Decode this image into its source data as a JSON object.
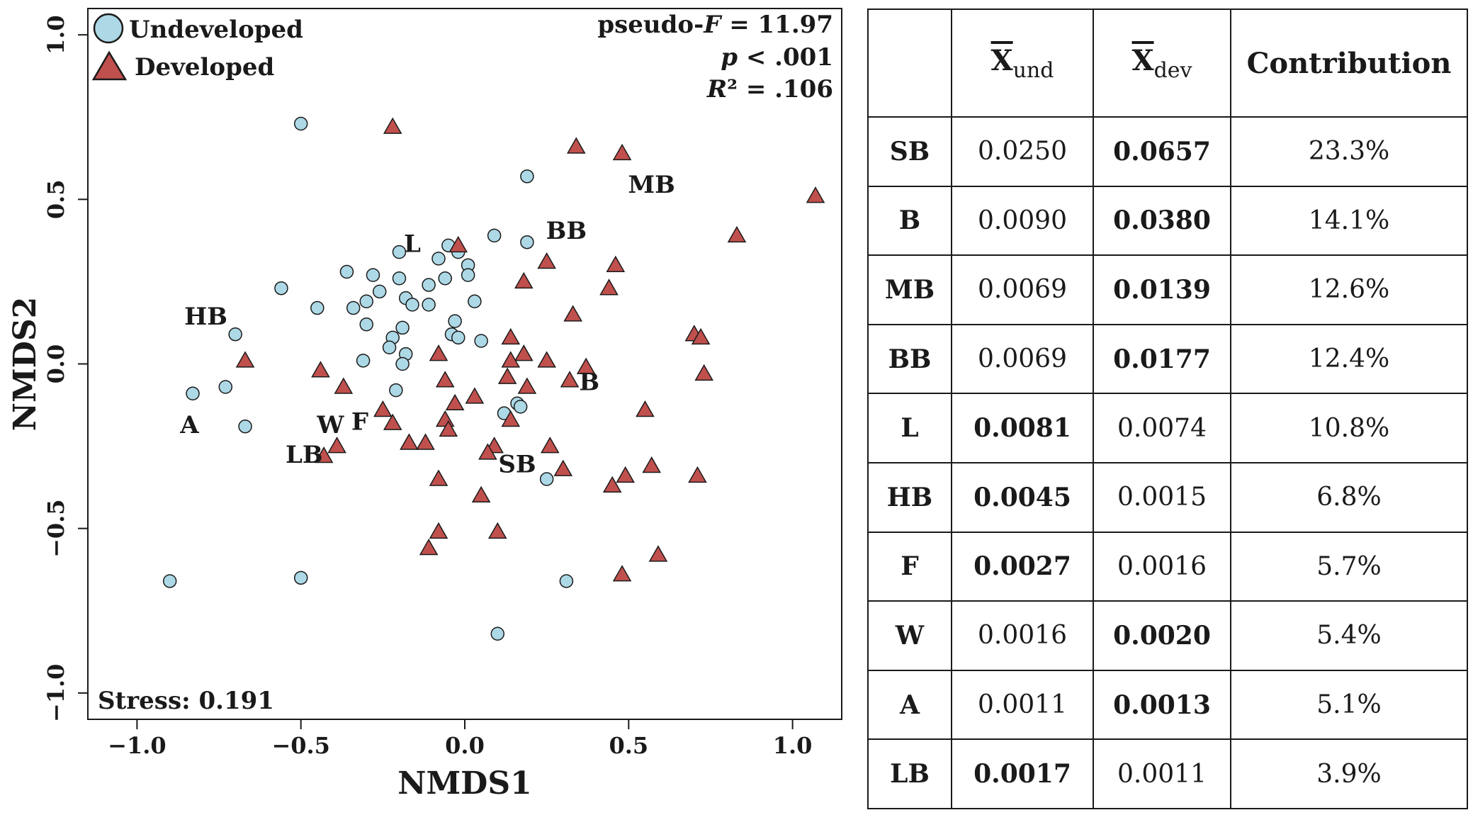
{
  "chart_data": {
    "type": "scatter",
    "xlabel": "NMDS1",
    "ylabel": "NMDS2",
    "xlim": [
      -1.15,
      1.15
    ],
    "ylim": [
      -1.08,
      1.08
    ],
    "xticks": [
      -1.0,
      -0.5,
      0.0,
      0.5,
      1.0
    ],
    "xtick_labels": [
      "−1.0",
      "−0.5",
      "0.0",
      "0.5",
      "1.0"
    ],
    "yticks": [
      -1.0,
      -0.5,
      0.0,
      0.5,
      1.0
    ],
    "ytick_labels": [
      "−1.0",
      "−0.5",
      "0.0",
      "0.5",
      "1.0"
    ],
    "grid": false,
    "legend_position": "top-left",
    "stats": {
      "pseudo_f_prefix": "pseudo-",
      "pseudo_f_italic": "F",
      "pseudo_f_value": " = 11.97",
      "p_italic": "p",
      "p_value": " < .001",
      "r2_italic": "R",
      "r2_value": "² = .106"
    },
    "stress_text": "Stress: 0.191",
    "series": [
      {
        "name": "Undeveloped",
        "marker": "circle",
        "color": "#ADD8E6",
        "points": [
          [
            -0.5,
            0.73
          ],
          [
            0.19,
            0.57
          ],
          [
            0.09,
            0.39
          ],
          [
            0.19,
            0.37
          ],
          [
            -0.05,
            0.36
          ],
          [
            -0.08,
            0.32
          ],
          [
            -0.02,
            0.34
          ],
          [
            0.01,
            0.3
          ],
          [
            0.01,
            0.27
          ],
          [
            -0.2,
            0.34
          ],
          [
            -0.36,
            0.28
          ],
          [
            -0.28,
            0.27
          ],
          [
            -0.2,
            0.26
          ],
          [
            -0.06,
            0.26
          ],
          [
            -0.56,
            0.23
          ],
          [
            -0.26,
            0.22
          ],
          [
            -0.11,
            0.24
          ],
          [
            -0.3,
            0.19
          ],
          [
            -0.18,
            0.2
          ],
          [
            -0.16,
            0.18
          ],
          [
            -0.11,
            0.18
          ],
          [
            0.03,
            0.19
          ],
          [
            -0.45,
            0.17
          ],
          [
            -0.34,
            0.17
          ],
          [
            -0.3,
            0.12
          ],
          [
            -0.19,
            0.11
          ],
          [
            -0.03,
            0.13
          ],
          [
            -0.04,
            0.09
          ],
          [
            -0.02,
            0.08
          ],
          [
            -0.7,
            0.09
          ],
          [
            -0.22,
            0.08
          ],
          [
            0.05,
            0.07
          ],
          [
            -0.23,
            0.05
          ],
          [
            -0.18,
            0.03
          ],
          [
            -0.31,
            0.01
          ],
          [
            -0.19,
            0.0
          ],
          [
            -0.83,
            -0.09
          ],
          [
            -0.73,
            -0.07
          ],
          [
            -0.21,
            -0.08
          ],
          [
            0.16,
            -0.12
          ],
          [
            0.17,
            -0.13
          ],
          [
            0.12,
            -0.15
          ],
          [
            -0.67,
            -0.19
          ],
          [
            0.25,
            -0.35
          ],
          [
            -0.5,
            -0.65
          ],
          [
            -0.9,
            -0.66
          ],
          [
            0.31,
            -0.66
          ],
          [
            0.1,
            -0.82
          ]
        ]
      },
      {
        "name": "Developed",
        "marker": "triangle",
        "color": "#C0504D",
        "points": [
          [
            -0.22,
            0.72
          ],
          [
            0.34,
            0.66
          ],
          [
            0.48,
            0.64
          ],
          [
            1.07,
            0.51
          ],
          [
            0.83,
            0.39
          ],
          [
            -0.02,
            0.36
          ],
          [
            0.25,
            0.31
          ],
          [
            0.46,
            0.3
          ],
          [
            0.18,
            0.25
          ],
          [
            0.44,
            0.23
          ],
          [
            0.33,
            0.15
          ],
          [
            0.7,
            0.09
          ],
          [
            0.72,
            0.08
          ],
          [
            0.14,
            0.08
          ],
          [
            0.18,
            0.03
          ],
          [
            -0.08,
            0.03
          ],
          [
            0.14,
            0.01
          ],
          [
            0.25,
            0.01
          ],
          [
            -0.67,
            0.01
          ],
          [
            0.37,
            -0.01
          ],
          [
            -0.44,
            -0.02
          ],
          [
            0.13,
            -0.04
          ],
          [
            0.73,
            -0.03
          ],
          [
            -0.37,
            -0.07
          ],
          [
            -0.06,
            -0.05
          ],
          [
            0.32,
            -0.05
          ],
          [
            0.19,
            -0.07
          ],
          [
            0.03,
            -0.1
          ],
          [
            -0.03,
            -0.12
          ],
          [
            -0.25,
            -0.14
          ],
          [
            0.55,
            -0.14
          ],
          [
            -0.06,
            -0.17
          ],
          [
            0.14,
            -0.17
          ],
          [
            -0.22,
            -0.18
          ],
          [
            -0.05,
            -0.2
          ],
          [
            -0.17,
            -0.24
          ],
          [
            -0.12,
            -0.24
          ],
          [
            0.09,
            -0.25
          ],
          [
            0.07,
            -0.27
          ],
          [
            0.26,
            -0.25
          ],
          [
            -0.39,
            -0.25
          ],
          [
            -0.43,
            -0.28
          ],
          [
            0.3,
            -0.32
          ],
          [
            0.57,
            -0.31
          ],
          [
            0.49,
            -0.34
          ],
          [
            0.71,
            -0.34
          ],
          [
            -0.08,
            -0.35
          ],
          [
            0.45,
            -0.37
          ],
          [
            0.05,
            -0.4
          ],
          [
            -0.08,
            -0.51
          ],
          [
            0.1,
            -0.51
          ],
          [
            -0.11,
            -0.56
          ],
          [
            0.59,
            -0.58
          ],
          [
            0.48,
            -0.64
          ]
        ]
      }
    ],
    "vector_labels": [
      {
        "text": "MB",
        "x": 0.57,
        "y": 0.52
      },
      {
        "text": "BB",
        "x": 0.31,
        "y": 0.38
      },
      {
        "text": "L",
        "x": -0.16,
        "y": 0.34
      },
      {
        "text": "HB",
        "x": -0.79,
        "y": 0.12
      },
      {
        "text": "B",
        "x": 0.38,
        "y": -0.08
      },
      {
        "text": "A",
        "x": -0.84,
        "y": -0.21
      },
      {
        "text": "W",
        "x": -0.41,
        "y": -0.21
      },
      {
        "text": "F",
        "x": -0.32,
        "y": -0.2
      },
      {
        "text": "LB",
        "x": -0.49,
        "y": -0.3
      },
      {
        "text": "SB",
        "x": 0.16,
        "y": -0.33
      }
    ]
  },
  "table": {
    "headers": {
      "blank": "",
      "und_base": "X",
      "und_sub": "und",
      "dev_base": "X",
      "dev_sub": "dev",
      "contribution": "Contribution"
    },
    "rows": [
      {
        "name": "SB",
        "und": "0.0250",
        "dev": "0.0657",
        "bold": "dev",
        "contribution": "23.3%"
      },
      {
        "name": "B",
        "und": "0.0090",
        "dev": "0.0380",
        "bold": "dev",
        "contribution": "14.1%"
      },
      {
        "name": "MB",
        "und": "0.0069",
        "dev": "0.0139",
        "bold": "dev",
        "contribution": "12.6%"
      },
      {
        "name": "BB",
        "und": "0.0069",
        "dev": "0.0177",
        "bold": "dev",
        "contribution": "12.4%"
      },
      {
        "name": "L",
        "und": "0.0081",
        "dev": "0.0074",
        "bold": "und",
        "contribution": "10.8%"
      },
      {
        "name": "HB",
        "und": "0.0045",
        "dev": "0.0015",
        "bold": "und",
        "contribution": "6.8%"
      },
      {
        "name": "F",
        "und": "0.0027",
        "dev": "0.0016",
        "bold": "und",
        "contribution": "5.7%"
      },
      {
        "name": "W",
        "und": "0.0016",
        "dev": "0.0020",
        "bold": "dev",
        "contribution": "5.4%"
      },
      {
        "name": "A",
        "und": "0.0011",
        "dev": "0.0013",
        "bold": "dev",
        "contribution": "5.1%"
      },
      {
        "name": "LB",
        "und": "0.0017",
        "dev": "0.0011",
        "bold": "und",
        "contribution": "3.9%"
      }
    ]
  }
}
